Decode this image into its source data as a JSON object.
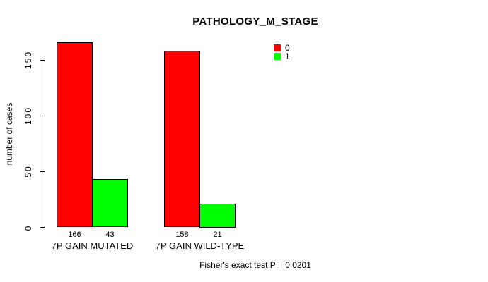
{
  "chart_data": {
    "type": "bar",
    "title": "PATHOLOGY_M_STAGE",
    "xlabel": "",
    "ylabel": "number of cases",
    "categories": [
      "7P GAIN MUTATED",
      "7P GAIN WILD-TYPE"
    ],
    "series": [
      {
        "name": "0",
        "color": "#FF0000",
        "values": [
          166,
          158
        ]
      },
      {
        "name": "1",
        "color": "#00FF00",
        "values": [
          43,
          21
        ]
      }
    ],
    "value_labels": [
      [
        166,
        43
      ],
      [
        158,
        21
      ]
    ],
    "yticks": [
      0,
      50,
      100,
      150
    ],
    "ylim": [
      0,
      175
    ],
    "grid": false,
    "legend_position": "top-right",
    "annotation": "Fisher's exact test P = 0.0201",
    "axis_color": "#000000",
    "bar_border_color": "#000000",
    "background_color": "#FFFFFF"
  }
}
